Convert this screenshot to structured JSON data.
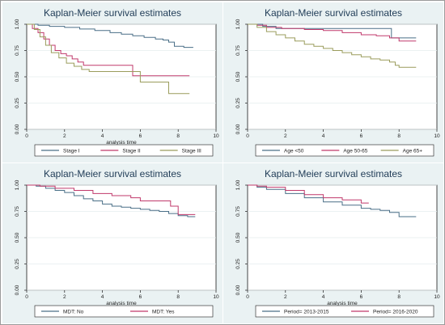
{
  "chart_data": [
    {
      "type": "line",
      "title": "Kaplan-Meier survival estimates",
      "xlabel": "analysis time",
      "ylabel": "",
      "xlim": [
        0,
        10
      ],
      "ylim": [
        0,
        1
      ],
      "xticks": [
        "0",
        "2",
        "4",
        "6",
        "8",
        "10"
      ],
      "yticks": [
        "0.00",
        "0.25",
        "0.50",
        "0.75",
        "1.00"
      ],
      "legend_position": "bottom",
      "series": [
        {
          "name": "Stage I",
          "color": "#4a6f87",
          "points": [
            [
              0,
              1.0
            ],
            [
              0.6,
              0.99
            ],
            [
              1.2,
              0.98
            ],
            [
              2.0,
              0.97
            ],
            [
              2.8,
              0.955
            ],
            [
              3.6,
              0.94
            ],
            [
              4.4,
              0.92
            ],
            [
              5.0,
              0.905
            ],
            [
              5.6,
              0.89
            ],
            [
              6.2,
              0.875
            ],
            [
              6.8,
              0.86
            ],
            [
              7.2,
              0.85
            ],
            [
              7.5,
              0.83
            ],
            [
              7.8,
              0.79
            ],
            [
              8.3,
              0.78
            ],
            [
              8.8,
              0.78
            ]
          ]
        },
        {
          "name": "Stage II",
          "color": "#c0396b",
          "points": [
            [
              0,
              1.0
            ],
            [
              0.3,
              0.96
            ],
            [
              0.6,
              0.92
            ],
            [
              0.9,
              0.86
            ],
            [
              1.2,
              0.8
            ],
            [
              1.5,
              0.75
            ],
            [
              1.8,
              0.72
            ],
            [
              2.1,
              0.7
            ],
            [
              2.4,
              0.67
            ],
            [
              2.7,
              0.64
            ],
            [
              3.0,
              0.61
            ],
            [
              5.5,
              0.61
            ],
            [
              5.6,
              0.51
            ],
            [
              8.6,
              0.51
            ]
          ]
        },
        {
          "name": "Stage III",
          "color": "#9a9c5c",
          "points": [
            [
              0,
              1.0
            ],
            [
              0.4,
              0.95
            ],
            [
              0.7,
              0.88
            ],
            [
              1.0,
              0.8
            ],
            [
              1.3,
              0.73
            ],
            [
              1.7,
              0.68
            ],
            [
              2.1,
              0.63
            ],
            [
              2.5,
              0.6
            ],
            [
              2.9,
              0.57
            ],
            [
              3.3,
              0.55
            ],
            [
              5.9,
              0.55
            ],
            [
              6.0,
              0.45
            ],
            [
              7.3,
              0.45
            ],
            [
              7.5,
              0.34
            ],
            [
              8.6,
              0.34
            ]
          ]
        }
      ]
    },
    {
      "type": "line",
      "title": "Kaplan-Meier survival estimates",
      "xlabel": "",
      "ylabel": "",
      "xlim": [
        0,
        10
      ],
      "ylim": [
        0,
        1
      ],
      "xticks": [
        "0",
        "2",
        "4",
        "6",
        "8",
        "10"
      ],
      "yticks": [
        "0.00",
        "0.25",
        "0.50",
        "0.75",
        "1.00"
      ],
      "legend_position": "bottom",
      "series": [
        {
          "name": "Age <50",
          "color": "#4a6f87",
          "points": [
            [
              0,
              1.0
            ],
            [
              0.8,
              0.98
            ],
            [
              1.5,
              0.96
            ],
            [
              7.5,
              0.96
            ],
            [
              7.6,
              0.87
            ],
            [
              8.9,
              0.87
            ]
          ]
        },
        {
          "name": "Age 50-65",
          "color": "#c0396b",
          "points": [
            [
              0,
              1.0
            ],
            [
              0.5,
              0.99
            ],
            [
              1.0,
              0.97
            ],
            [
              1.8,
              0.96
            ],
            [
              3.0,
              0.95
            ],
            [
              4.0,
              0.94
            ],
            [
              5.0,
              0.92
            ],
            [
              6.0,
              0.9
            ],
            [
              6.8,
              0.89
            ],
            [
              7.5,
              0.87
            ],
            [
              8.0,
              0.84
            ],
            [
              8.9,
              0.84
            ]
          ]
        },
        {
          "name": "Age 65+",
          "color": "#9a9c5c",
          "points": [
            [
              0,
              1.0
            ],
            [
              0.5,
              0.97
            ],
            [
              1.0,
              0.93
            ],
            [
              1.5,
              0.9
            ],
            [
              2.0,
              0.87
            ],
            [
              2.5,
              0.84
            ],
            [
              3.0,
              0.81
            ],
            [
              3.5,
              0.79
            ],
            [
              4.0,
              0.77
            ],
            [
              4.5,
              0.75
            ],
            [
              5.0,
              0.73
            ],
            [
              5.5,
              0.71
            ],
            [
              6.0,
              0.69
            ],
            [
              6.5,
              0.67
            ],
            [
              7.0,
              0.66
            ],
            [
              7.5,
              0.64
            ],
            [
              7.8,
              0.61
            ],
            [
              8.0,
              0.59
            ],
            [
              8.9,
              0.59
            ]
          ]
        }
      ]
    },
    {
      "type": "line",
      "title": "Kaplan-Meier survival estimates",
      "xlabel": "analysis time",
      "ylabel": "",
      "xlim": [
        0,
        10
      ],
      "ylim": [
        0,
        1
      ],
      "xticks": [
        "0",
        "2",
        "4",
        "6",
        "8",
        "10"
      ],
      "yticks": [
        "0.00",
        "0.25",
        "0.50",
        "0.75",
        "1.00"
      ],
      "legend_position": "bottom",
      "series": [
        {
          "name": "MDT: No",
          "color": "#4a6f87",
          "points": [
            [
              0,
              1.0
            ],
            [
              0.5,
              0.99
            ],
            [
              1.0,
              0.97
            ],
            [
              1.5,
              0.95
            ],
            [
              2.0,
              0.93
            ],
            [
              2.5,
              0.9
            ],
            [
              3.0,
              0.87
            ],
            [
              3.5,
              0.85
            ],
            [
              4.0,
              0.82
            ],
            [
              4.5,
              0.8
            ],
            [
              5.0,
              0.79
            ],
            [
              5.5,
              0.78
            ],
            [
              6.0,
              0.77
            ],
            [
              6.5,
              0.76
            ],
            [
              7.0,
              0.75
            ],
            [
              7.5,
              0.73
            ],
            [
              8.0,
              0.71
            ],
            [
              8.5,
              0.7
            ],
            [
              8.9,
              0.7
            ]
          ]
        },
        {
          "name": "MDT: Yes",
          "color": "#c0396b",
          "points": [
            [
              0,
              1.0
            ],
            [
              0.7,
              0.99
            ],
            [
              1.5,
              0.97
            ],
            [
              2.5,
              0.95
            ],
            [
              3.5,
              0.92
            ],
            [
              4.5,
              0.9
            ],
            [
              5.5,
              0.88
            ],
            [
              6.0,
              0.85
            ],
            [
              7.3,
              0.85
            ],
            [
              7.6,
              0.8
            ],
            [
              8.0,
              0.72
            ],
            [
              8.9,
              0.72
            ]
          ]
        }
      ]
    },
    {
      "type": "line",
      "title": "Kaplan-Meier survival estimates",
      "xlabel": "analysis time",
      "ylabel": "",
      "xlim": [
        0,
        10
      ],
      "ylim": [
        0,
        1
      ],
      "xticks": [
        "0",
        "2",
        "4",
        "6",
        "8",
        "10"
      ],
      "yticks": [
        "0.00",
        "0.25",
        "0.50",
        "0.75",
        "1.00"
      ],
      "legend_position": "bottom",
      "series": [
        {
          "name": "Period= 2013-2015",
          "color": "#4a6f87",
          "points": [
            [
              0,
              1.0
            ],
            [
              0.5,
              0.98
            ],
            [
              1.0,
              0.96
            ],
            [
              2.0,
              0.92
            ],
            [
              3.0,
              0.88
            ],
            [
              4.0,
              0.84
            ],
            [
              5.0,
              0.81
            ],
            [
              6.0,
              0.78
            ],
            [
              6.5,
              0.77
            ],
            [
              7.0,
              0.76
            ],
            [
              7.5,
              0.74
            ],
            [
              8.0,
              0.7
            ],
            [
              8.9,
              0.7
            ]
          ]
        },
        {
          "name": "Period= 2016-2020",
          "color": "#c0396b",
          "points": [
            [
              0,
              1.0
            ],
            [
              0.5,
              0.99
            ],
            [
              1.0,
              0.98
            ],
            [
              2.0,
              0.95
            ],
            [
              3.0,
              0.91
            ],
            [
              4.0,
              0.88
            ],
            [
              5.0,
              0.86
            ],
            [
              6.0,
              0.83
            ],
            [
              6.4,
              0.83
            ]
          ]
        }
      ]
    }
  ]
}
